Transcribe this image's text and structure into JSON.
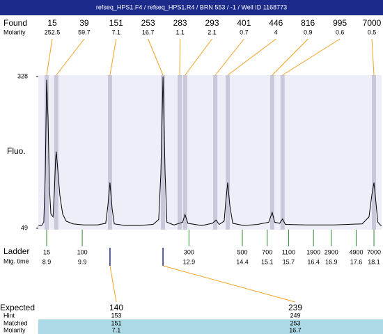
{
  "header": {
    "title": "refseq_HPS1.F4 / refseq_HPS1.R4 / BRN 553 / -1 / Well ID 1168773"
  },
  "found": {
    "label": "Found",
    "molarity_label": "Molarity",
    "sizes": [
      15,
      39,
      151,
      253,
      283,
      293,
      401,
      446,
      816,
      995,
      7000
    ],
    "molarities": [
      252.5,
      59.7,
      7.1,
      16.7,
      1.1,
      2.1,
      0.7,
      4,
      0.9,
      0.6,
      0.5
    ],
    "x": [
      8.9,
      9.17,
      10.68,
      12.17,
      12.64,
      12.79,
      13.64,
      13.99,
      15.24,
      15.53,
      18.1
    ]
  },
  "chart_data": {
    "type": "line",
    "ylabel": "Fluo.",
    "x": [
      8.67,
      8.76,
      8.82,
      8.86,
      8.9,
      8.94,
      8.98,
      9.02,
      9.08,
      9.12,
      9.15,
      9.17,
      9.21,
      9.27,
      9.35,
      9.45,
      9.64,
      9.94,
      10.33,
      10.56,
      10.62,
      10.68,
      10.74,
      10.8,
      11.11,
      11.5,
      11.89,
      12.05,
      12.11,
      12.17,
      12.23,
      12.28,
      12.48,
      12.72,
      12.79,
      12.87,
      13.26,
      13.56,
      13.66,
      13.75,
      13.89,
      13.93,
      13.99,
      14.05,
      14.13,
      14.44,
      14.83,
      15.14,
      15.24,
      15.31,
      15.45,
      15.53,
      15.61,
      16.19,
      16.98,
      17.77,
      17.96,
      18.04,
      18.1,
      18.15,
      18.21,
      18.31
    ],
    "values": [
      53,
      54,
      60,
      150,
      322,
      250,
      120,
      75,
      70,
      120,
      175,
      190,
      160,
      110,
      75,
      62,
      57,
      55,
      55,
      58,
      90,
      133,
      85,
      57,
      54,
      54,
      56,
      65,
      150,
      328,
      150,
      60,
      55,
      60,
      74,
      58,
      54,
      58,
      64,
      56,
      62,
      95,
      133,
      90,
      58,
      54,
      56,
      60,
      78,
      60,
      58,
      66,
      56,
      55,
      55,
      57,
      70,
      110,
      133,
      100,
      60,
      53
    ],
    "color": "#000000",
    "xlim": [
      8.665,
      18.315
    ],
    "ylim": [
      46.4,
      330.6
    ],
    "yticks": [
      328,
      49
    ]
  },
  "ladder": {
    "label": "Ladder",
    "time_label": "Mig. time",
    "sizes": [
      15,
      100,
      300,
      500,
      700,
      1100,
      1900,
      2900,
      4900,
      7000
    ],
    "times": [
      8.9,
      9.9,
      12.9,
      14.4,
      15.1,
      15.7,
      16.4,
      16.9,
      17.6,
      18.1
    ]
  },
  "expected": {
    "label": "Expected",
    "hint_label": "Hint",
    "matched_label": "Matched",
    "molarity_label": "Molarity",
    "rows": [
      {
        "expected": 140,
        "hint": 153,
        "matched": 151,
        "molarity": 7.1
      },
      {
        "expected": 239,
        "hint": 249,
        "matched": 253,
        "molarity": 16.7
      }
    ]
  }
}
